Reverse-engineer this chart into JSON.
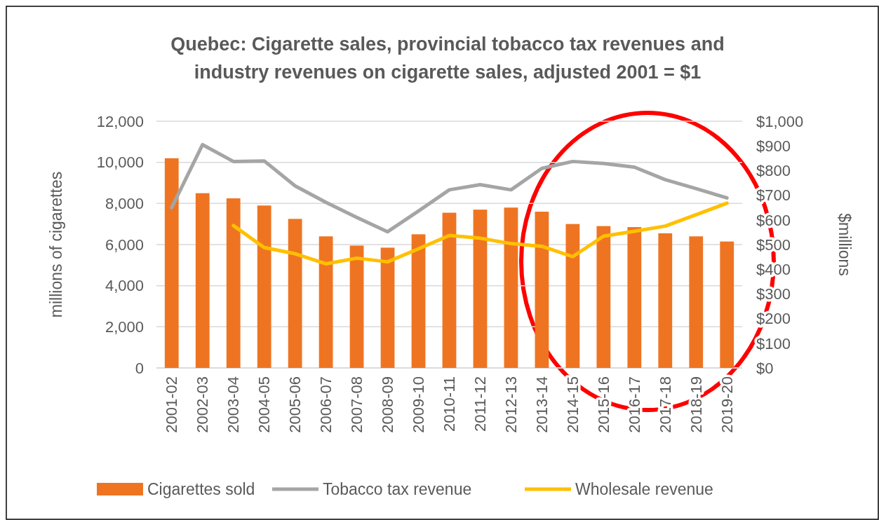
{
  "chart_data": {
    "type": "bar",
    "title": "Quebec:  Cigarette sales, provincial tobacco tax revenues and industry revenues on cigarette sales, adjusted 2001  = $1",
    "ylabel": "millions of cigarettes",
    "y2label": "$millions",
    "categories": [
      "2001-02",
      "2002-03",
      "2003-04",
      "2004-05",
      "2005-06",
      "2006-07",
      "2007-08",
      "2008-09",
      "2009-10",
      "2010-11",
      "2011-12",
      "2012-13",
      "2013-14",
      "2014-15",
      "2015-16",
      "2016-17",
      "2017-18",
      "2018-19",
      "2019-20"
    ],
    "series": [
      {
        "name": "Cigarettes sold",
        "color": "#ef7422",
        "values": [
          10200,
          8500,
          8250,
          7900,
          7250,
          6400,
          5950,
          5850,
          6500,
          7550,
          7700,
          7800,
          7600,
          7000,
          6900,
          6850,
          6550,
          6400,
          6150
        ]
      },
      {
        "name": "Tobacco tax revenue",
        "type": "line",
        "axis": "y2",
        "color": "#a5a5a5",
        "values": [
          650,
          905,
          837,
          839,
          738,
          671,
          610,
          552,
          636,
          722,
          743,
          722,
          809,
          837,
          829,
          814,
          763,
          727,
          689
        ]
      },
      {
        "name": "Wholesale revenue",
        "type": "line",
        "axis": "y2",
        "color": "#ffc000",
        "values": [
          null,
          null,
          577,
          488,
          463,
          422,
          445,
          430,
          483,
          537,
          526,
          504,
          493,
          451,
          534,
          554,
          575,
          621,
          668
        ]
      }
    ],
    "ylim": [
      0,
      12000
    ],
    "yticks": [
      {
        "value": 0,
        "label": "0"
      },
      {
        "value": 2000,
        "label": "2,000"
      },
      {
        "value": 4000,
        "label": "4,000"
      },
      {
        "value": 6000,
        "label": "6,000"
      },
      {
        "value": 8000,
        "label": "8,000"
      },
      {
        "value": 10000,
        "label": "10,000"
      },
      {
        "value": 12000,
        "label": "12,000"
      }
    ],
    "y2lim": [
      0,
      1000
    ],
    "y2ticks": [
      {
        "value": 0,
        "label": "$0"
      },
      {
        "value": 100,
        "label": "$100"
      },
      {
        "value": 200,
        "label": "$200"
      },
      {
        "value": 300,
        "label": "$300"
      },
      {
        "value": 400,
        "label": "$400"
      },
      {
        "value": 500,
        "label": "$500"
      },
      {
        "value": 600,
        "label": "$600"
      },
      {
        "value": 700,
        "label": "$700"
      },
      {
        "value": 800,
        "label": "$800"
      },
      {
        "value": 900,
        "label": "$900"
      },
      {
        "value": 1000,
        "label": "$1,000"
      }
    ],
    "grid": "y",
    "legend": "bottom",
    "line_style": "solid",
    "marker": "none"
  }
}
